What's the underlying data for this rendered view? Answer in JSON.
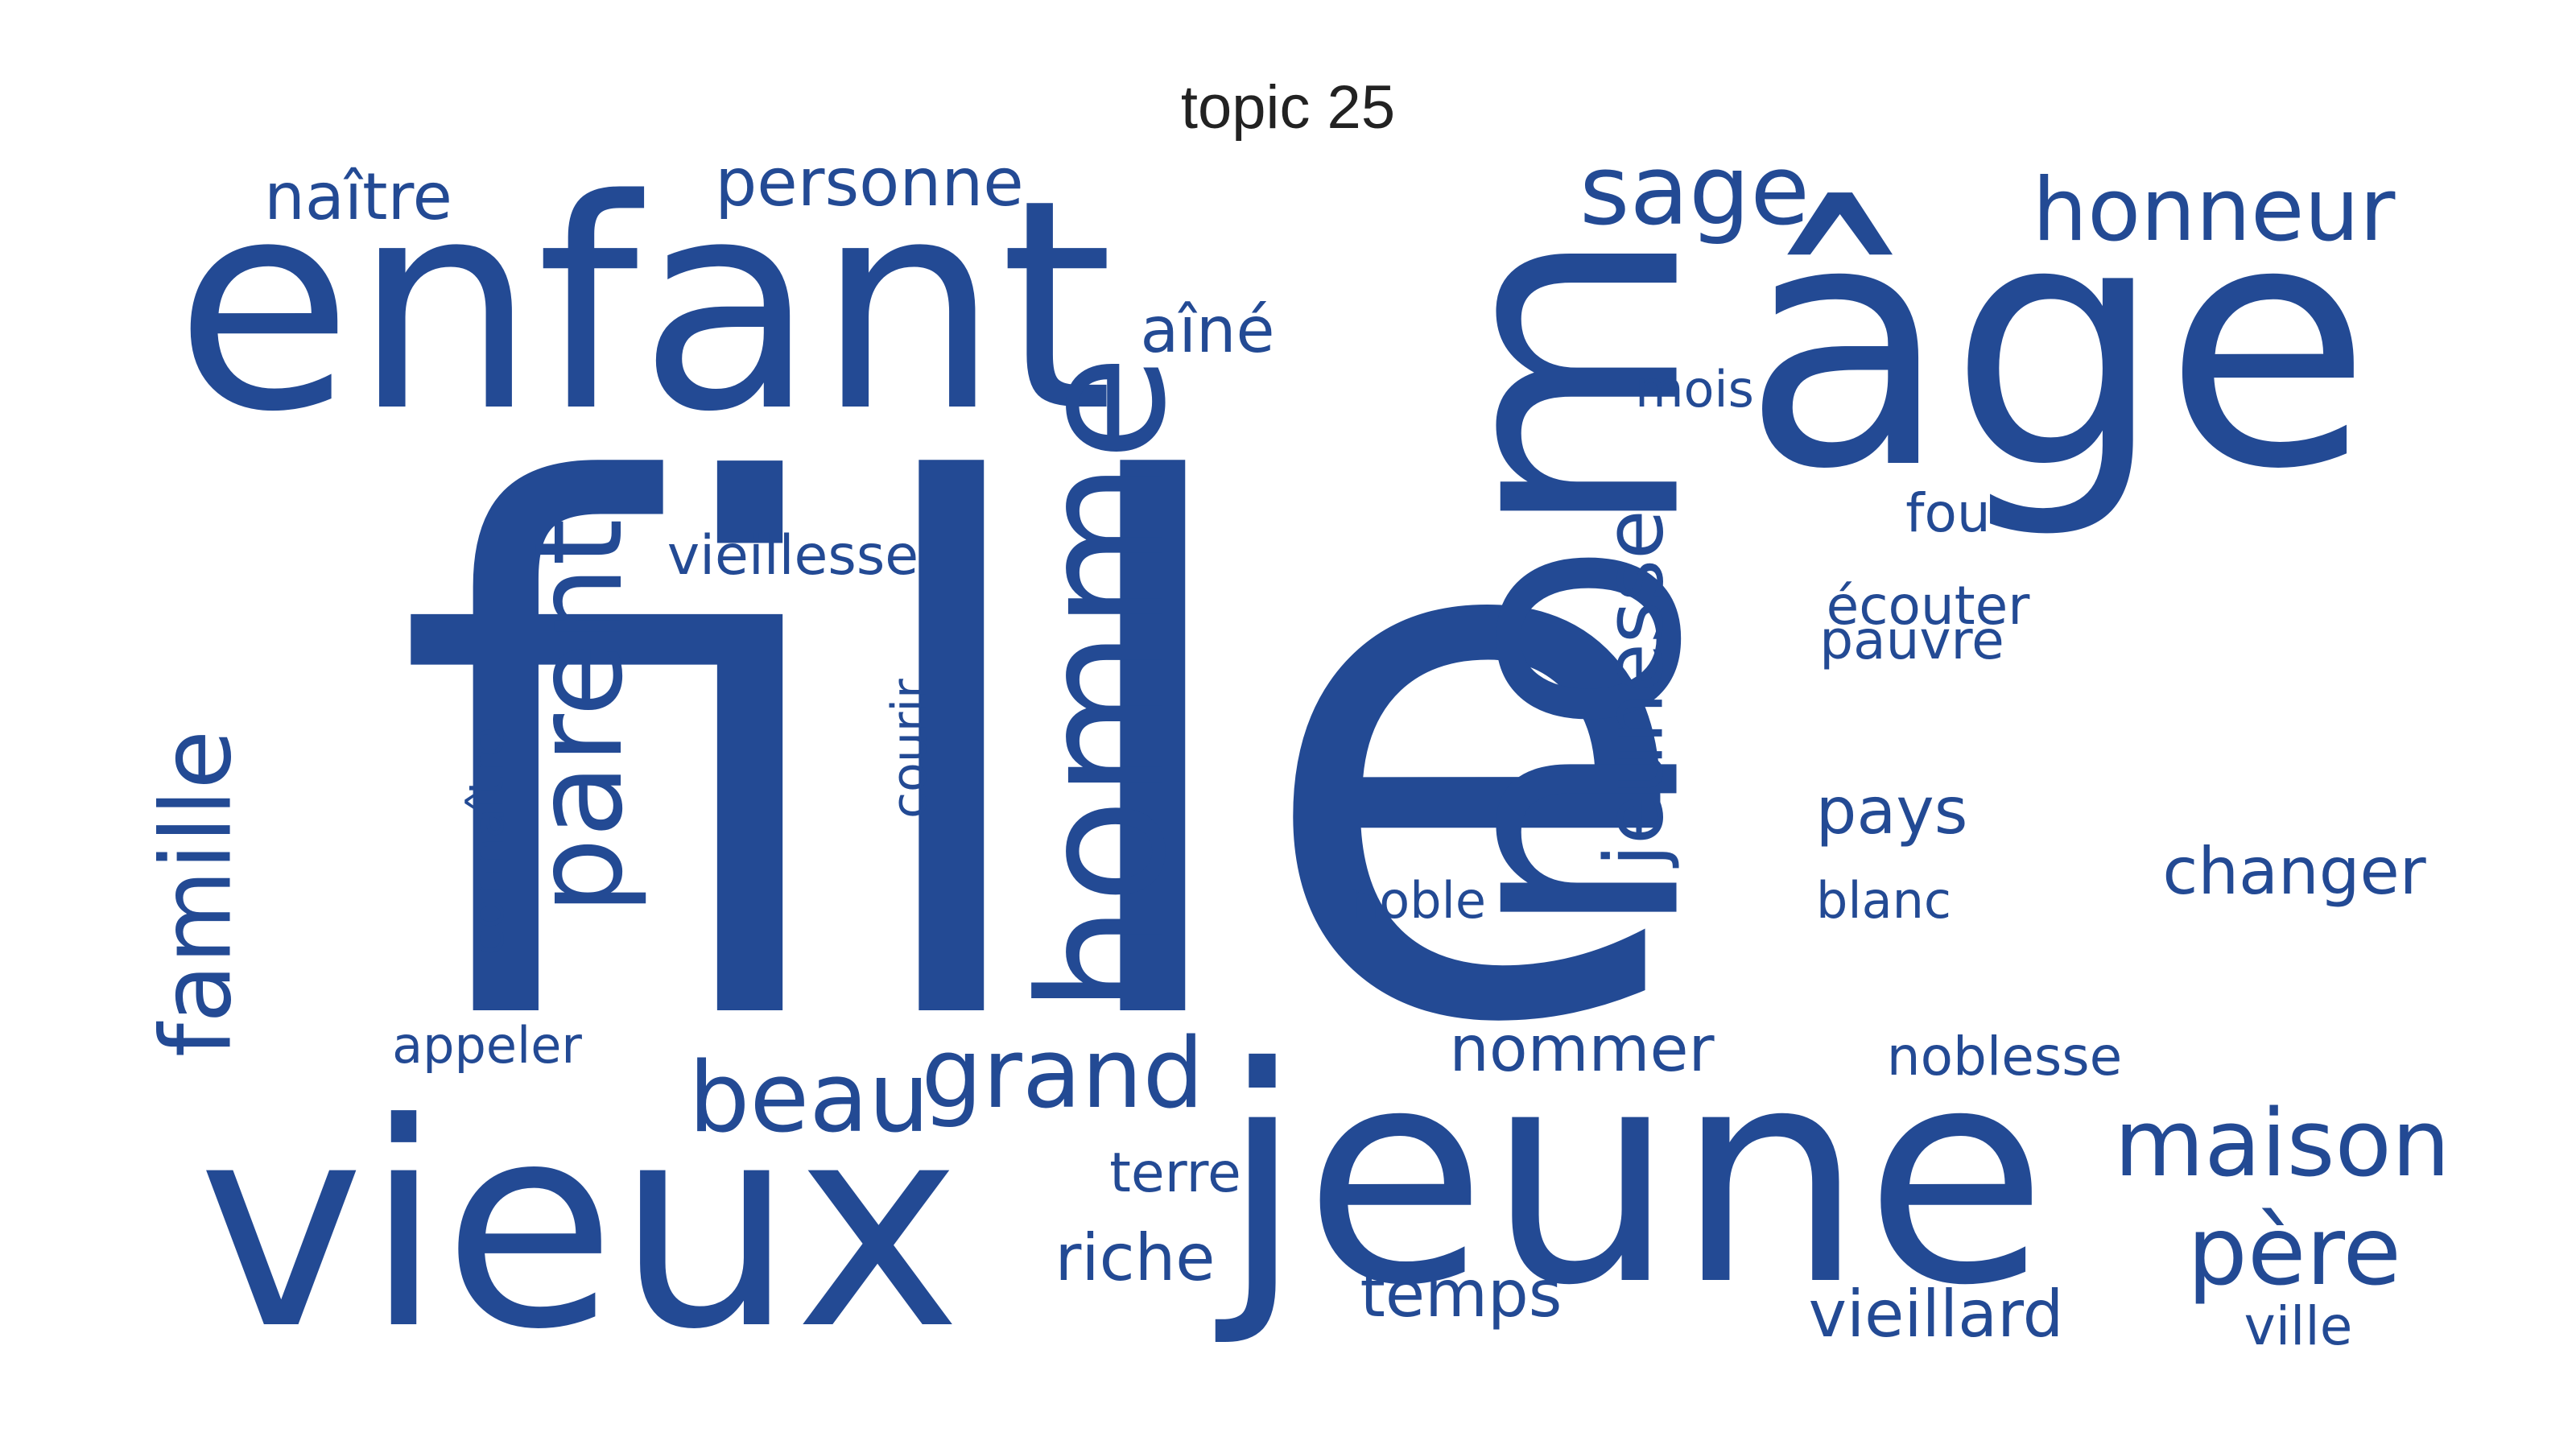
{
  "title": "topic 25",
  "color": "#234a94",
  "words": [
    {
      "text": "fille"
    },
    {
      "text": "enfant"
    },
    {
      "text": "vieux"
    },
    {
      "text": "jeune"
    },
    {
      "text": "âge"
    },
    {
      "text": "nom"
    },
    {
      "text": "homme"
    },
    {
      "text": "parent"
    },
    {
      "text": "jeunesse"
    },
    {
      "text": "famille"
    },
    {
      "text": "naître"
    },
    {
      "text": "personne"
    },
    {
      "text": "sage"
    },
    {
      "text": "honneur"
    },
    {
      "text": "aîné"
    },
    {
      "text": "mois"
    },
    {
      "text": "vieillesse"
    },
    {
      "text": "fou"
    },
    {
      "text": "écouter"
    },
    {
      "text": "pauvre"
    },
    {
      "text": "connaître"
    },
    {
      "text": "courir"
    },
    {
      "text": "pays"
    },
    {
      "text": "changer"
    },
    {
      "text": "noble"
    },
    {
      "text": "blanc"
    },
    {
      "text": "appeler"
    },
    {
      "text": "nommer"
    },
    {
      "text": "noblesse"
    },
    {
      "text": "beau"
    },
    {
      "text": "grand"
    },
    {
      "text": "maison"
    },
    {
      "text": "terre"
    },
    {
      "text": "riche"
    },
    {
      "text": "père"
    },
    {
      "text": "temps"
    },
    {
      "text": "vieillard"
    },
    {
      "text": "ville"
    }
  ]
}
